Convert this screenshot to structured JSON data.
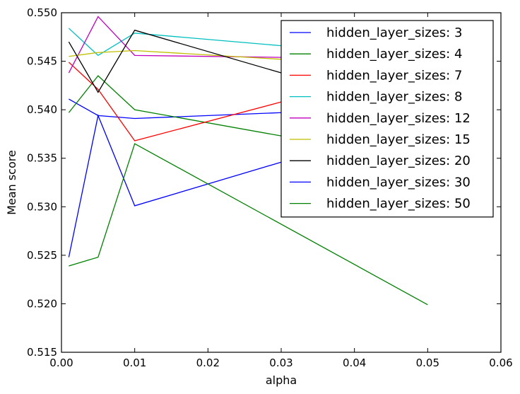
{
  "chart_data": {
    "type": "line",
    "title": "",
    "xlabel": "alpha",
    "ylabel": "Mean score",
    "xlim": [
      0.0,
      0.06
    ],
    "ylim": [
      0.515,
      0.55
    ],
    "xticks": [
      "0.00",
      "0.01",
      "0.02",
      "0.03",
      "0.04",
      "0.05",
      "0.06"
    ],
    "yticks": [
      "0.515",
      "0.520",
      "0.525",
      "0.530",
      "0.535",
      "0.540",
      "0.545",
      "0.550"
    ],
    "grid": false,
    "legend_position": "upper right",
    "series": [
      {
        "name": "hidden_layer_sizes: 3",
        "color": "#0000ff",
        "x": [
          0.001,
          0.005,
          0.01,
          0.03
        ],
        "y": [
          0.5411,
          0.5394,
          0.5391,
          0.5397
        ]
      },
      {
        "name": "hidden_layer_sizes: 4",
        "color": "#008000",
        "x": [
          0.001,
          0.005,
          0.01,
          0.03
        ],
        "y": [
          0.5397,
          0.5435,
          0.54,
          0.5373
        ]
      },
      {
        "name": "hidden_layer_sizes: 7",
        "color": "#ff0000",
        "x": [
          0.001,
          0.005,
          0.01,
          0.03
        ],
        "y": [
          0.5449,
          0.5421,
          0.5368,
          0.5408
        ]
      },
      {
        "name": "hidden_layer_sizes: 8",
        "color": "#00bfbf",
        "x": [
          0.001,
          0.005,
          0.01,
          0.03
        ],
        "y": [
          0.5484,
          0.5456,
          0.5479,
          0.5466
        ]
      },
      {
        "name": "hidden_layer_sizes: 12",
        "color": "#bf00bf",
        "x": [
          0.001,
          0.005,
          0.01,
          0.03
        ],
        "y": [
          0.5438,
          0.5496,
          0.5456,
          0.5454
        ]
      },
      {
        "name": "hidden_layer_sizes: 15",
        "color": "#bfbf00",
        "x": [
          0.001,
          0.005,
          0.01,
          0.03
        ],
        "y": [
          0.5455,
          0.5459,
          0.5461,
          0.5452
        ]
      },
      {
        "name": "hidden_layer_sizes: 20",
        "color": "#000000",
        "x": [
          0.001,
          0.005,
          0.01,
          0.03
        ],
        "y": [
          0.547,
          0.5418,
          0.5482,
          0.5438
        ]
      },
      {
        "name": "hidden_layer_sizes: 30",
        "color": "#0000ff",
        "x": [
          0.001,
          0.005,
          0.01,
          0.03
        ],
        "y": [
          0.5248,
          0.5394,
          0.5301,
          0.5346
        ]
      },
      {
        "name": "hidden_layer_sizes: 50",
        "color": "#008000",
        "x": [
          0.001,
          0.005,
          0.01,
          0.05
        ],
        "y": [
          0.5239,
          0.5248,
          0.5365,
          0.5199
        ]
      }
    ]
  }
}
